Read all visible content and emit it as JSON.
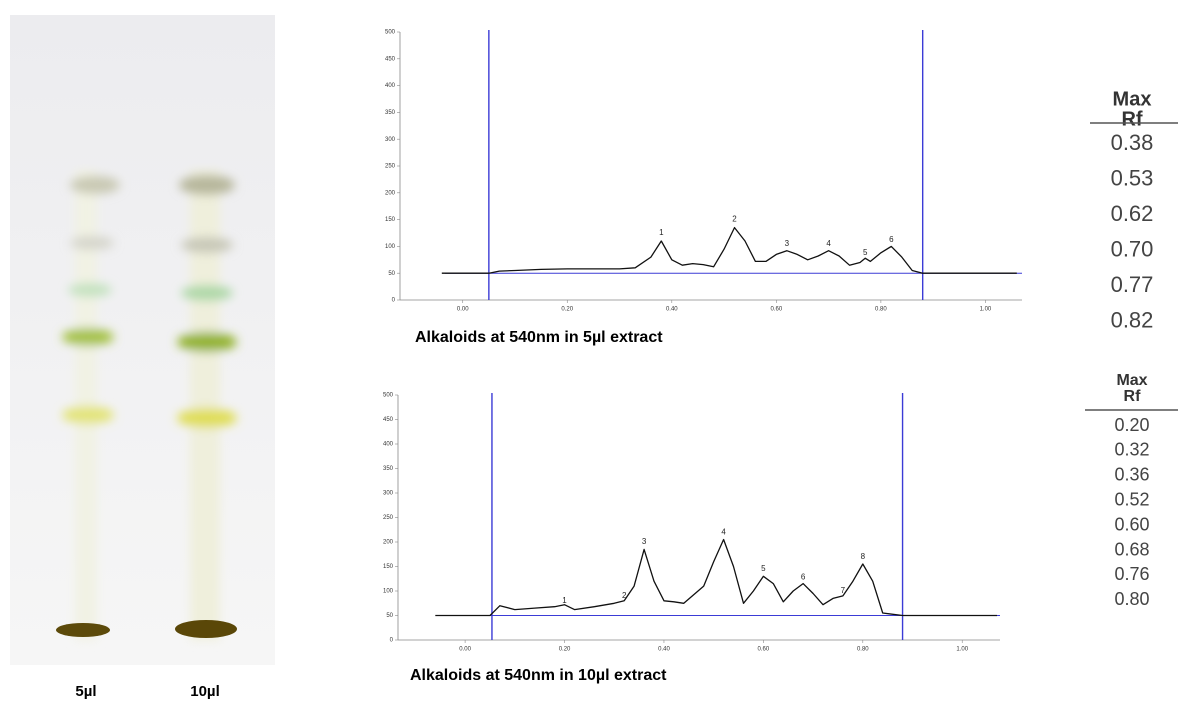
{
  "plate": {
    "lanes": [
      "5µl",
      "10µl"
    ]
  },
  "chart_data": [
    {
      "type": "line",
      "title": "Alkaloids at 540nm in 5µl extract",
      "xlim": [
        -0.12,
        1.07
      ],
      "ylim": [
        0,
        500
      ],
      "xticks": [
        {
          "value": 0,
          "label": "0.00"
        },
        {
          "value": 0.2,
          "label": "0.20"
        },
        {
          "value": 0.4,
          "label": "0.40"
        },
        {
          "value": 0.6,
          "label": "0.60"
        },
        {
          "value": 0.8,
          "label": "0.80"
        },
        {
          "value": 1,
          "label": "1.00"
        }
      ],
      "yticks": [
        0,
        50,
        100,
        150,
        200,
        250,
        300,
        350,
        400,
        450,
        500
      ],
      "markers": {
        "x": [
          0.05,
          0.88
        ],
        "color": "#3b3bd6"
      },
      "baseline": {
        "value": 50,
        "color": "#3b3bd6"
      },
      "series": [
        {
          "color": "#111111",
          "x": [
            -0.04,
            0.05,
            0.07,
            0.1,
            0.15,
            0.2,
            0.25,
            0.3,
            0.33,
            0.36,
            0.38,
            0.4,
            0.42,
            0.44,
            0.46,
            0.48,
            0.5,
            0.52,
            0.54,
            0.56,
            0.58,
            0.6,
            0.62,
            0.64,
            0.66,
            0.68,
            0.7,
            0.72,
            0.74,
            0.76,
            0.77,
            0.78,
            0.8,
            0.82,
            0.84,
            0.86,
            0.88,
            0.95,
            1.06
          ],
          "values": [
            50,
            50,
            54,
            55,
            57,
            58,
            58,
            58,
            60,
            80,
            110,
            75,
            65,
            68,
            66,
            62,
            95,
            135,
            110,
            72,
            72,
            85,
            92,
            85,
            75,
            82,
            92,
            82,
            65,
            70,
            78,
            72,
            88,
            100,
            80,
            55,
            50,
            50,
            50
          ]
        }
      ],
      "annotations": [
        {
          "text": "1",
          "x": 0.38,
          "y": 125
        },
        {
          "text": "2",
          "x": 0.52,
          "y": 150
        },
        {
          "text": "3",
          "x": 0.62,
          "y": 105
        },
        {
          "text": "4",
          "x": 0.7,
          "y": 105
        },
        {
          "text": "5",
          "x": 0.77,
          "y": 88
        },
        {
          "text": "6",
          "x": 0.82,
          "y": 112
        }
      ]
    },
    {
      "type": "line",
      "title": "Alkaloids at 540nm in 10µl extract",
      "xlim": [
        -0.135,
        1.076
      ],
      "ylim": [
        0,
        500
      ],
      "xticks": [
        {
          "value": 0,
          "label": "0.00"
        },
        {
          "value": 0.2,
          "label": "0.20"
        },
        {
          "value": 0.4,
          "label": "0.40"
        },
        {
          "value": 0.6,
          "label": "0.60"
        },
        {
          "value": 0.8,
          "label": "0.80"
        },
        {
          "value": 1,
          "label": "1.00"
        }
      ],
      "yticks": [
        0,
        50,
        100,
        150,
        200,
        250,
        300,
        350,
        400,
        450,
        500
      ],
      "markers": {
        "x": [
          0.054,
          0.88
        ],
        "color": "#3b3bd6"
      },
      "baseline": {
        "value": 50,
        "color": "#3b3bd6"
      },
      "series": [
        {
          "color": "#111111",
          "x": [
            -0.06,
            0.05,
            0.07,
            0.1,
            0.14,
            0.18,
            0.2,
            0.22,
            0.26,
            0.3,
            0.32,
            0.34,
            0.36,
            0.38,
            0.4,
            0.42,
            0.44,
            0.48,
            0.5,
            0.52,
            0.54,
            0.56,
            0.58,
            0.6,
            0.62,
            0.64,
            0.66,
            0.68,
            0.7,
            0.72,
            0.74,
            0.76,
            0.78,
            0.8,
            0.82,
            0.84,
            0.88,
            0.95,
            1.07
          ],
          "values": [
            50,
            50,
            70,
            62,
            65,
            68,
            72,
            62,
            68,
            75,
            80,
            110,
            185,
            120,
            80,
            78,
            75,
            110,
            160,
            205,
            150,
            75,
            100,
            130,
            115,
            78,
            100,
            115,
            95,
            72,
            85,
            90,
            120,
            155,
            120,
            55,
            50,
            50,
            50
          ]
        }
      ],
      "annotations": [
        {
          "text": "1",
          "x": 0.2,
          "y": 80
        },
        {
          "text": "2",
          "x": 0.32,
          "y": 90
        },
        {
          "text": "3",
          "x": 0.36,
          "y": 200
        },
        {
          "text": "4",
          "x": 0.52,
          "y": 220
        },
        {
          "text": "5",
          "x": 0.6,
          "y": 145
        },
        {
          "text": "6",
          "x": 0.68,
          "y": 128
        },
        {
          "text": "7",
          "x": 0.76,
          "y": 100
        },
        {
          "text": "8",
          "x": 0.8,
          "y": 170
        }
      ]
    }
  ],
  "tables": [
    {
      "header": [
        "Max",
        "Rf"
      ],
      "rows": [
        "0.38",
        "0.53",
        "0.62",
        "0.70",
        "0.77",
        "0.82"
      ]
    },
    {
      "header": [
        "Max",
        "Rf"
      ],
      "rows": [
        "0.20",
        "0.32",
        "0.36",
        "0.52",
        "0.60",
        "0.68",
        "0.76",
        "0.80"
      ]
    }
  ]
}
